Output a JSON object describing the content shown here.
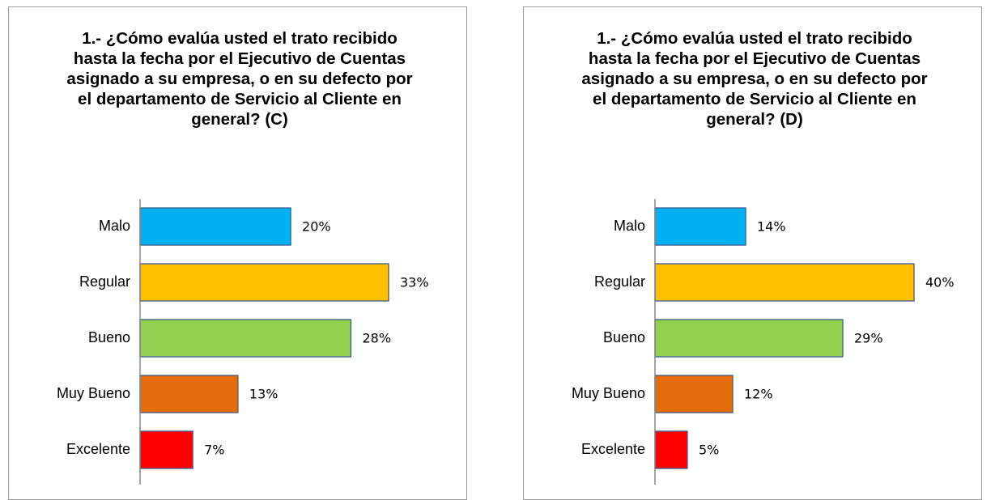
{
  "chart_data": [
    {
      "type": "bar",
      "orientation": "horizontal",
      "title": "1.- ¿Cómo evalúa usted el trato recibido hasta la fecha por el Ejecutivo de Cuentas asignado a su empresa, o en su defecto por el departamento de Servicio al Cliente en general? (C)",
      "categories": [
        "Malo",
        "Regular",
        "Bueno",
        "Muy Bueno",
        "Excelente"
      ],
      "values": [
        20,
        33,
        28,
        13,
        7
      ],
      "value_labels": [
        "20%",
        "33%",
        "28%",
        "13%",
        "7%"
      ],
      "colors": [
        "#00b0f0",
        "#ffc000",
        "#92d050",
        "#e46c0a",
        "#ff0000"
      ],
      "xlim": [
        0,
        43
      ]
    },
    {
      "type": "bar",
      "orientation": "horizontal",
      "title": "1.- ¿Cómo evalúa usted el trato recibido hasta la fecha por el Ejecutivo de Cuentas asignado a su empresa, o en su defecto por el departamento de Servicio al Cliente en general? (D)",
      "categories": [
        "Malo",
        "Regular",
        "Bueno",
        "Muy Bueno",
        "Excelente"
      ],
      "values": [
        14,
        40,
        29,
        12,
        5
      ],
      "value_labels": [
        "14%",
        "40%",
        "29%",
        "12%",
        "5%"
      ],
      "colors": [
        "#00b0f0",
        "#ffc000",
        "#92d050",
        "#e46c0a",
        "#ff0000"
      ],
      "xlim": [
        0,
        50
      ]
    }
  ]
}
